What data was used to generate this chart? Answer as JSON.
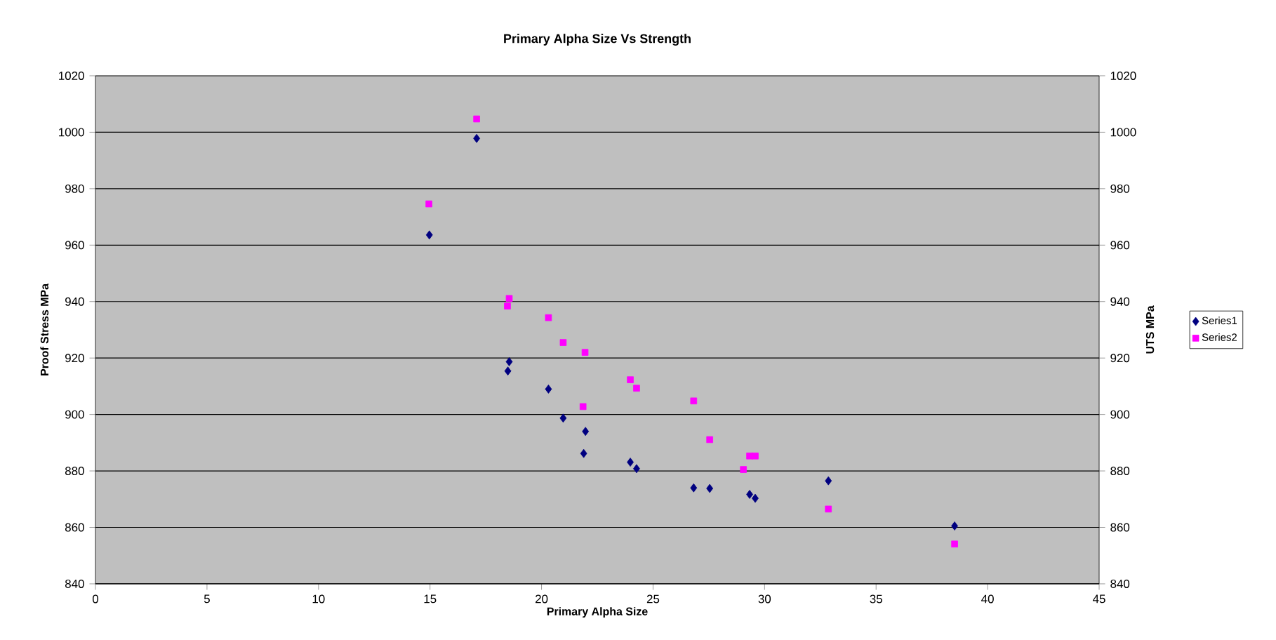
{
  "chart_data": {
    "type": "scatter",
    "title": "Primary Alpha Size Vs Strength",
    "xlabel": "Primary Alpha Size",
    "ylabel": "Proof Stress MPa",
    "y2label": "UTS MPa",
    "xlim": [
      0,
      45
    ],
    "xticks": [
      0,
      5,
      10,
      15,
      20,
      25,
      30,
      35,
      40,
      45
    ],
    "ylim": [
      840,
      1020
    ],
    "yticks": [
      840,
      860,
      880,
      900,
      920,
      940,
      960,
      980,
      1000,
      1020
    ],
    "y2lim": [
      840,
      1020
    ],
    "y2ticks": [
      840,
      860,
      880,
      900,
      920,
      940,
      960,
      980,
      1000,
      1020
    ],
    "grid": "y",
    "legend": "right",
    "series": [
      {
        "name": "Series1",
        "color": "#000080",
        "marker": "diamond",
        "x": [
          14.97,
          17.09,
          18.55,
          18.49,
          20.31,
          20.97,
          21.97,
          21.89,
          23.98,
          24.26,
          26.82,
          27.54,
          29.33,
          29.58,
          32.86,
          38.52
        ],
        "values": [
          963.6,
          997.8,
          918.7,
          915.4,
          909,
          898.7,
          894,
          886.2,
          883.1,
          880.8,
          874,
          873.8,
          871.7,
          870.3,
          876.5,
          860.5
        ]
      },
      {
        "name": "Series2",
        "color": "#ff00ff",
        "marker": "square",
        "axis": "y2",
        "x": [
          14.95,
          17.09,
          18.55,
          18.47,
          20.31,
          20.97,
          21.95,
          21.86,
          23.98,
          24.26,
          26.82,
          27.54,
          29.05,
          29.33,
          29.58,
          32.86,
          38.52
        ],
        "values": [
          974.6,
          1004.7,
          941.1,
          938.4,
          934.3,
          925.5,
          922,
          902.8,
          912.3,
          909.3,
          904.8,
          891.1,
          880.5,
          885.3,
          885.3,
          866.5,
          854.1
        ]
      }
    ]
  }
}
